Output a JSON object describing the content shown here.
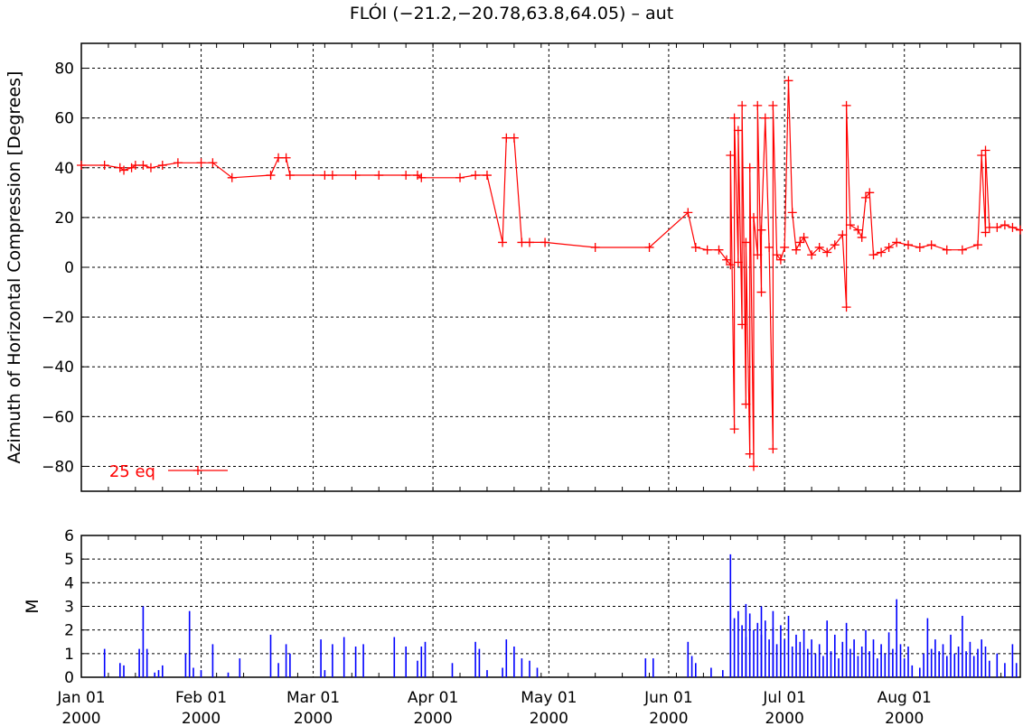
{
  "title": "FLÓI (−21.2,−20.78,63.8,64.05) – aut",
  "colors": {
    "azimuth": "#ff0000",
    "magnitude": "#0000ff",
    "grid": "#000000"
  },
  "chart_data": [
    {
      "type": "line",
      "ylabel": "Azimuth of Horizontal Compression [Degrees]",
      "xlabel": "",
      "x_range": [
        "2000-01-01",
        "2000-08-31"
      ],
      "ylim": [
        -90,
        90
      ],
      "yticks": [
        "80",
        "60",
        "40",
        "20",
        "0",
        "−20",
        "−40",
        "−60",
        "−80"
      ],
      "grid": true,
      "legend": {
        "label": "25 eq",
        "position": "bottom-left"
      },
      "series": [
        {
          "name": "25 eq",
          "marker": "plus",
          "points": [
            [
              "2000-01-01",
              41
            ],
            [
              "2000-01-07",
              41
            ],
            [
              "2000-01-11",
              40
            ],
            [
              "2000-01-12",
              39
            ],
            [
              "2000-01-14",
              40
            ],
            [
              "2000-01-15",
              41
            ],
            [
              "2000-01-17",
              41
            ],
            [
              "2000-01-19",
              40
            ],
            [
              "2000-01-22",
              41
            ],
            [
              "2000-01-26",
              42
            ],
            [
              "2000-02-01",
              42
            ],
            [
              "2000-02-04",
              42
            ],
            [
              "2000-02-09",
              36
            ],
            [
              "2000-02-19",
              37
            ],
            [
              "2000-02-21",
              44
            ],
            [
              "2000-02-23",
              44
            ],
            [
              "2000-02-24",
              37
            ],
            [
              "2000-03-04",
              37
            ],
            [
              "2000-03-06",
              37
            ],
            [
              "2000-03-12",
              37
            ],
            [
              "2000-03-18",
              37
            ],
            [
              "2000-03-25",
              37
            ],
            [
              "2000-03-28",
              37
            ],
            [
              "2000-03-29",
              36
            ],
            [
              "2000-04-08",
              36
            ],
            [
              "2000-04-12",
              37
            ],
            [
              "2000-04-15",
              37
            ],
            [
              "2000-04-19",
              10
            ],
            [
              "2000-04-20",
              52
            ],
            [
              "2000-04-22",
              52
            ],
            [
              "2000-04-24",
              10
            ],
            [
              "2000-04-26",
              10
            ],
            [
              "2000-04-30",
              10
            ],
            [
              "2000-05-13",
              8
            ],
            [
              "2000-05-27",
              8
            ],
            [
              "2000-06-06",
              22
            ],
            [
              "2000-06-08",
              8
            ],
            [
              "2000-06-11",
              7
            ],
            [
              "2000-06-14",
              7
            ],
            [
              "2000-06-16",
              3
            ],
            [
              "2000-06-17",
              1
            ],
            [
              "2000-06-17",
              45
            ],
            [
              "2000-06-18",
              -65
            ],
            [
              "2000-06-18",
              60
            ],
            [
              "2000-06-19",
              2
            ],
            [
              "2000-06-19",
              55
            ],
            [
              "2000-06-20",
              -23
            ],
            [
              "2000-06-20",
              65
            ],
            [
              "2000-06-21",
              -55
            ],
            [
              "2000-06-21",
              10
            ],
            [
              "2000-06-22",
              -75
            ],
            [
              "2000-06-22",
              40
            ],
            [
              "2000-06-23",
              -80
            ],
            [
              "2000-06-23",
              20
            ],
            [
              "2000-06-24",
              5
            ],
            [
              "2000-06-24",
              65
            ],
            [
              "2000-06-25",
              -10
            ],
            [
              "2000-06-25",
              15
            ],
            [
              "2000-06-26",
              60
            ],
            [
              "2000-06-27",
              8
            ],
            [
              "2000-06-28",
              -73
            ],
            [
              "2000-06-28",
              65
            ],
            [
              "2000-06-29",
              5
            ],
            [
              "2000-06-30",
              3
            ],
            [
              "2000-07-01",
              8
            ],
            [
              "2000-07-02",
              75
            ],
            [
              "2000-07-03",
              22
            ],
            [
              "2000-07-04",
              7
            ],
            [
              "2000-07-05",
              10
            ],
            [
              "2000-07-06",
              12
            ],
            [
              "2000-07-08",
              5
            ],
            [
              "2000-07-10",
              8
            ],
            [
              "2000-07-12",
              6
            ],
            [
              "2000-07-14",
              9
            ],
            [
              "2000-07-16",
              13
            ],
            [
              "2000-07-17",
              -16
            ],
            [
              "2000-07-17",
              65
            ],
            [
              "2000-07-18",
              17
            ],
            [
              "2000-07-20",
              15
            ],
            [
              "2000-07-21",
              12
            ],
            [
              "2000-07-22",
              28
            ],
            [
              "2000-07-23",
              30
            ],
            [
              "2000-07-24",
              5
            ],
            [
              "2000-07-26",
              6
            ],
            [
              "2000-07-28",
              8
            ],
            [
              "2000-07-30",
              10
            ],
            [
              "2000-08-02",
              9
            ],
            [
              "2000-08-05",
              8
            ],
            [
              "2000-08-08",
              9
            ],
            [
              "2000-08-12",
              7
            ],
            [
              "2000-08-16",
              7
            ],
            [
              "2000-08-20",
              9
            ],
            [
              "2000-08-21",
              45
            ],
            [
              "2000-08-22",
              14
            ],
            [
              "2000-08-22",
              47
            ],
            [
              "2000-08-23",
              16
            ],
            [
              "2000-08-25",
              16
            ],
            [
              "2000-08-27",
              17
            ],
            [
              "2000-08-29",
              16
            ],
            [
              "2000-08-31",
              15
            ]
          ]
        }
      ]
    },
    {
      "type": "bar",
      "ylabel": "M",
      "xlabel": "",
      "x_range": [
        "2000-01-01",
        "2000-08-31"
      ],
      "ylim": [
        0,
        6
      ],
      "yticks": [
        "6",
        "5",
        "4",
        "3",
        "2",
        "1",
        "0"
      ],
      "grid": true,
      "xticks": [
        {
          "date": "2000-01-01",
          "label": "Jan 01",
          "year": "2000"
        },
        {
          "date": "2000-02-01",
          "label": "Feb 01",
          "year": "2000"
        },
        {
          "date": "2000-03-01",
          "label": "Mar 01",
          "year": "2000"
        },
        {
          "date": "2000-04-01",
          "label": "Apr 01",
          "year": "2000"
        },
        {
          "date": "2000-05-01",
          "label": "May 01",
          "year": "2000"
        },
        {
          "date": "2000-06-01",
          "label": "Jun 01",
          "year": "2000"
        },
        {
          "date": "2000-07-01",
          "label": "Jul 01",
          "year": "2000"
        },
        {
          "date": "2000-08-01",
          "label": "Aug 01",
          "year": "2000"
        }
      ],
      "events": [
        [
          "2000-01-07",
          1.2
        ],
        [
          "2000-01-11",
          0.6
        ],
        [
          "2000-01-12",
          0.5
        ],
        [
          "2000-01-16",
          1.2
        ],
        [
          "2000-01-17",
          3.0
        ],
        [
          "2000-01-18",
          1.2
        ],
        [
          "2000-01-20",
          0.2
        ],
        [
          "2000-01-21",
          0.3
        ],
        [
          "2000-01-22",
          0.5
        ],
        [
          "2000-01-28",
          1.0
        ],
        [
          "2000-01-29",
          2.8
        ],
        [
          "2000-01-30",
          0.4
        ],
        [
          "2000-02-01",
          0.3
        ],
        [
          "2000-02-04",
          1.4
        ],
        [
          "2000-02-08",
          0.2
        ],
        [
          "2000-02-11",
          0.8
        ],
        [
          "2000-02-19",
          1.8
        ],
        [
          "2000-02-21",
          0.6
        ],
        [
          "2000-02-23",
          1.4
        ],
        [
          "2000-02-24",
          1.0
        ],
        [
          "2000-03-03",
          1.6
        ],
        [
          "2000-03-04",
          0.3
        ],
        [
          "2000-03-06",
          1.4
        ],
        [
          "2000-03-09",
          1.7
        ],
        [
          "2000-03-12",
          1.3
        ],
        [
          "2000-03-14",
          1.4
        ],
        [
          "2000-03-22",
          1.7
        ],
        [
          "2000-03-25",
          1.3
        ],
        [
          "2000-03-28",
          0.7
        ],
        [
          "2000-03-29",
          1.3
        ],
        [
          "2000-03-30",
          1.5
        ],
        [
          "2000-04-06",
          0.6
        ],
        [
          "2000-04-12",
          1.5
        ],
        [
          "2000-04-13",
          1.2
        ],
        [
          "2000-04-15",
          0.3
        ],
        [
          "2000-04-19",
          0.4
        ],
        [
          "2000-04-20",
          1.6
        ],
        [
          "2000-04-22",
          1.3
        ],
        [
          "2000-04-24",
          0.8
        ],
        [
          "2000-04-26",
          0.7
        ],
        [
          "2000-04-28",
          0.4
        ],
        [
          "2000-05-26",
          0.8
        ],
        [
          "2000-05-28",
          0.8
        ],
        [
          "2000-06-06",
          1.5
        ],
        [
          "2000-06-07",
          0.9
        ],
        [
          "2000-06-08",
          0.6
        ],
        [
          "2000-06-12",
          0.4
        ],
        [
          "2000-06-15",
          0.3
        ],
        [
          "2000-06-17",
          5.2
        ],
        [
          "2000-06-17",
          3.1
        ],
        [
          "2000-06-18",
          2.5
        ],
        [
          "2000-06-19",
          2.8
        ],
        [
          "2000-06-20",
          2.2
        ],
        [
          "2000-06-21",
          3.1
        ],
        [
          "2000-06-21",
          1.7
        ],
        [
          "2000-06-22",
          2.7
        ],
        [
          "2000-06-23",
          2.0
        ],
        [
          "2000-06-24",
          2.3
        ],
        [
          "2000-06-25",
          3.0
        ],
        [
          "2000-06-25",
          1.8
        ],
        [
          "2000-06-26",
          2.4
        ],
        [
          "2000-06-27",
          1.6
        ],
        [
          "2000-06-28",
          2.1
        ],
        [
          "2000-06-28",
          2.8
        ],
        [
          "2000-06-29",
          1.4
        ],
        [
          "2000-06-30",
          2.2
        ],
        [
          "2000-07-01",
          1.6
        ],
        [
          "2000-07-02",
          2.6
        ],
        [
          "2000-07-03",
          1.3
        ],
        [
          "2000-07-04",
          1.8
        ],
        [
          "2000-07-05",
          1.5
        ],
        [
          "2000-07-06",
          2.0
        ],
        [
          "2000-07-07",
          1.2
        ],
        [
          "2000-07-08",
          1.6
        ],
        [
          "2000-07-09",
          1.0
        ],
        [
          "2000-07-10",
          1.4
        ],
        [
          "2000-07-11",
          0.9
        ],
        [
          "2000-07-12",
          2.4
        ],
        [
          "2000-07-13",
          1.1
        ],
        [
          "2000-07-14",
          1.8
        ],
        [
          "2000-07-15",
          0.8
        ],
        [
          "2000-07-16",
          1.5
        ],
        [
          "2000-07-17",
          2.3
        ],
        [
          "2000-07-18",
          1.2
        ],
        [
          "2000-07-19",
          1.6
        ],
        [
          "2000-07-20",
          0.9
        ],
        [
          "2000-07-21",
          1.3
        ],
        [
          "2000-07-22",
          2.0
        ],
        [
          "2000-07-23",
          1.1
        ],
        [
          "2000-07-24",
          1.6
        ],
        [
          "2000-07-25",
          0.8
        ],
        [
          "2000-07-26",
          1.4
        ],
        [
          "2000-07-27",
          1.0
        ],
        [
          "2000-07-28",
          1.9
        ],
        [
          "2000-07-29",
          1.2
        ],
        [
          "2000-07-30",
          3.3
        ],
        [
          "2000-07-31",
          1.4
        ],
        [
          "2000-08-01",
          0.8
        ],
        [
          "2000-08-02",
          1.3
        ],
        [
          "2000-08-03",
          0.5
        ],
        [
          "2000-08-05",
          0.4
        ],
        [
          "2000-08-06",
          1.0
        ],
        [
          "2000-08-07",
          2.5
        ],
        [
          "2000-08-08",
          1.2
        ],
        [
          "2000-08-09",
          1.6
        ],
        [
          "2000-08-10",
          1.1
        ],
        [
          "2000-08-11",
          1.4
        ],
        [
          "2000-08-12",
          0.9
        ],
        [
          "2000-08-13",
          1.8
        ],
        [
          "2000-08-14",
          1.0
        ],
        [
          "2000-08-15",
          1.3
        ],
        [
          "2000-08-16",
          2.6
        ],
        [
          "2000-08-17",
          1.1
        ],
        [
          "2000-08-18",
          1.5
        ],
        [
          "2000-08-19",
          0.9
        ],
        [
          "2000-08-20",
          1.2
        ],
        [
          "2000-08-21",
          1.6
        ],
        [
          "2000-08-22",
          1.3
        ],
        [
          "2000-08-23",
          0.7
        ],
        [
          "2000-08-25",
          1.0
        ],
        [
          "2000-08-27",
          0.6
        ],
        [
          "2000-08-29",
          1.4
        ],
        [
          "2000-08-30",
          0.6
        ]
      ]
    }
  ]
}
